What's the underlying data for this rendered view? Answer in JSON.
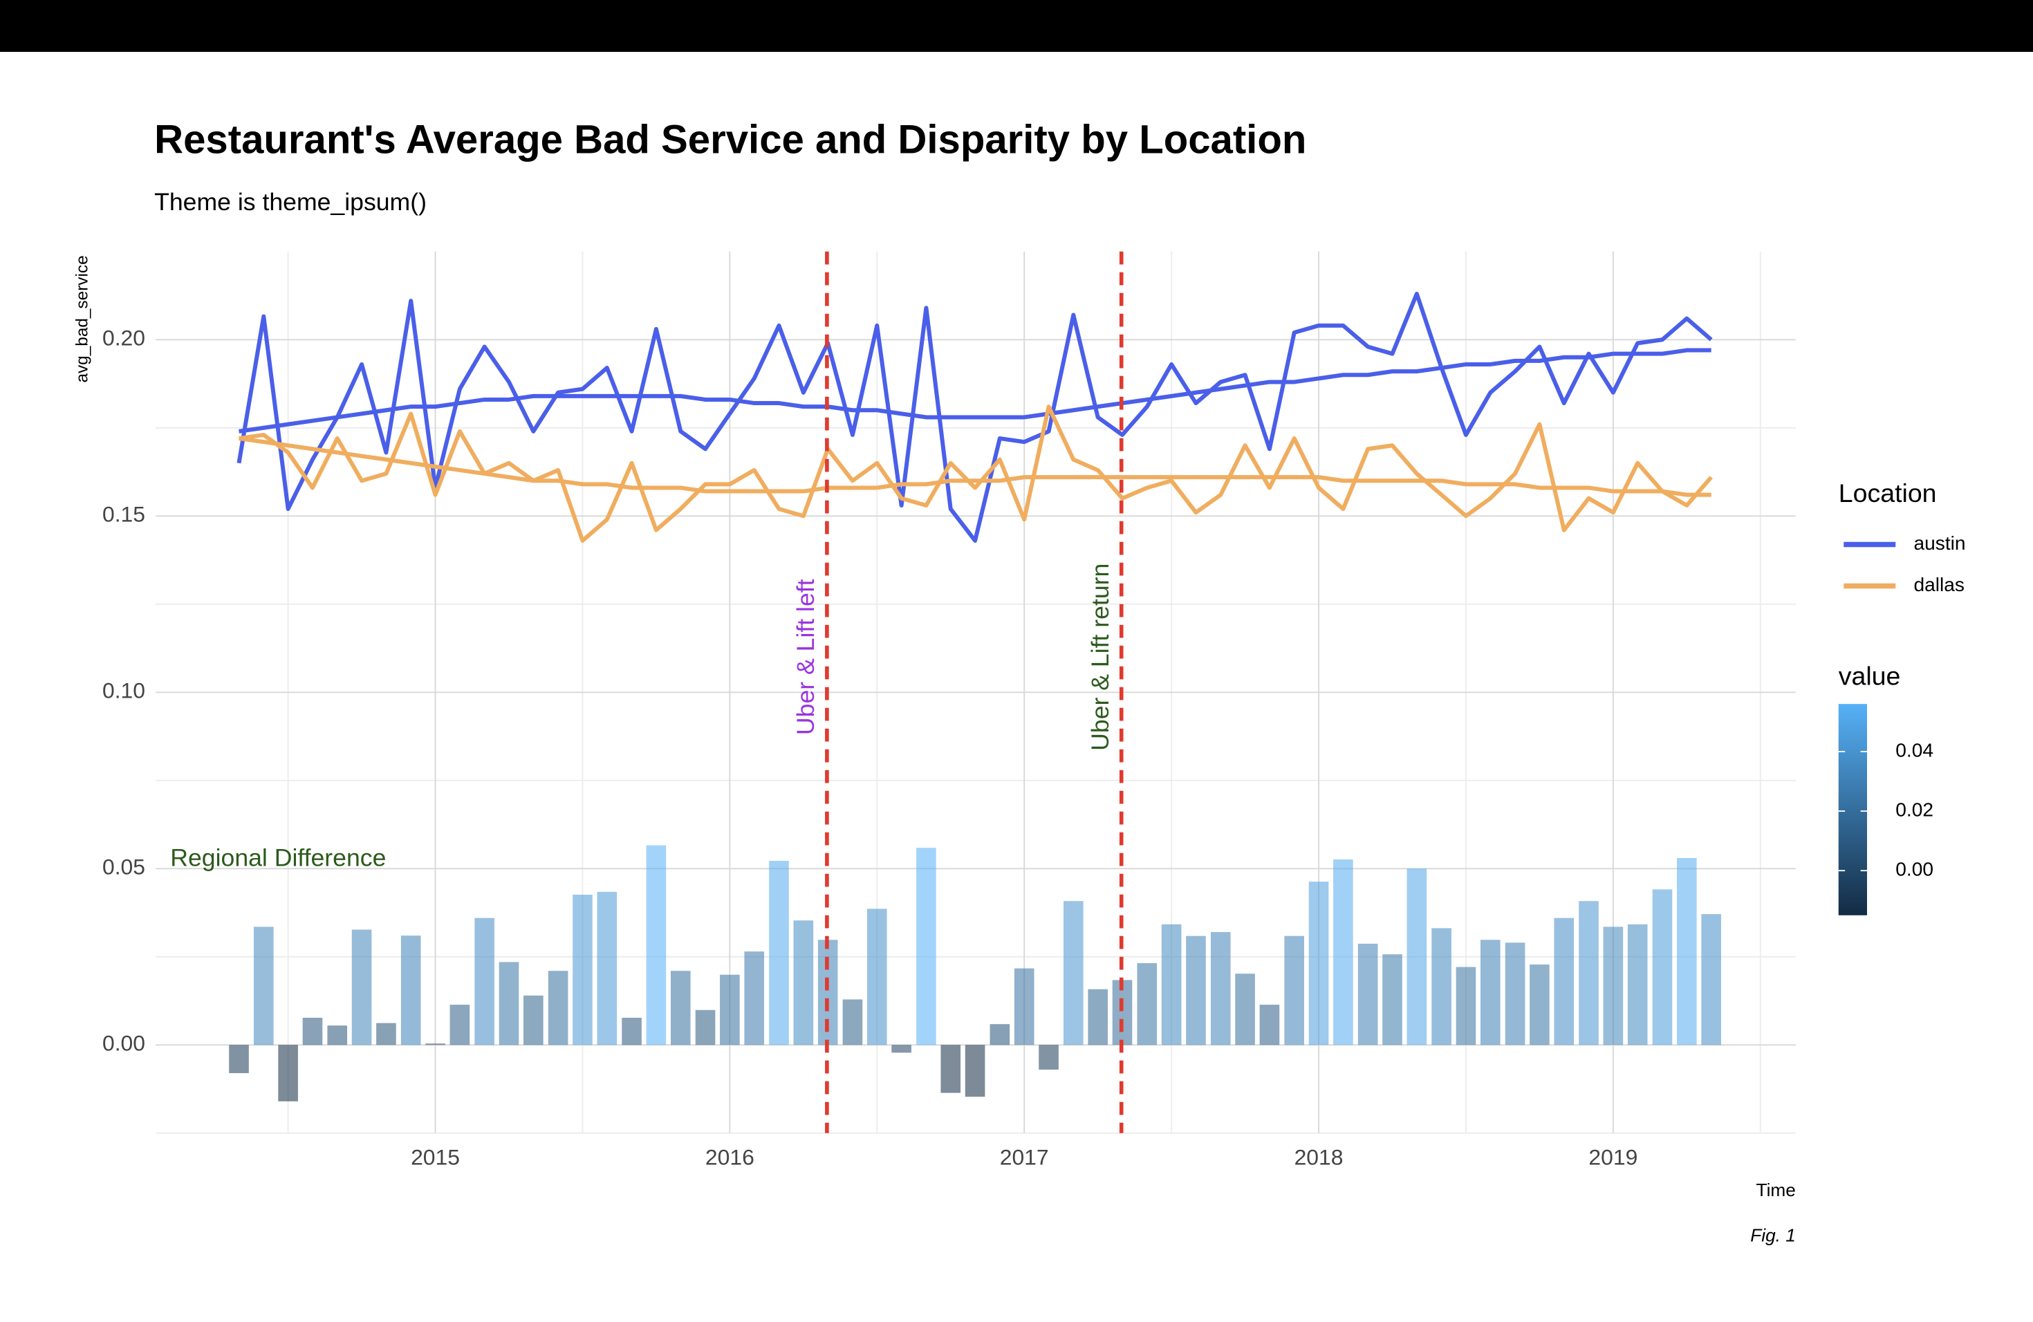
{
  "chart_data": {
    "type": "line",
    "title": "Restaurant's Average Bad Service and Disparity by Location",
    "subtitle": "Theme is theme_ipsum()",
    "y_label": "avg_bad_service",
    "x_label": "Time",
    "caption": "Fig. 1",
    "legend_title": "Location",
    "x": [
      2014.333,
      2014.417,
      2014.5,
      2014.583,
      2014.667,
      2014.75,
      2014.833,
      2014.917,
      2015,
      2015.083,
      2015.167,
      2015.25,
      2015.333,
      2015.417,
      2015.5,
      2015.583,
      2015.667,
      2015.75,
      2015.833,
      2015.917,
      2016,
      2016.083,
      2016.167,
      2016.25,
      2016.333,
      2016.417,
      2016.5,
      2016.583,
      2016.667,
      2016.75,
      2016.833,
      2016.917,
      2017,
      2017.083,
      2017.167,
      2017.25,
      2017.333,
      2017.417,
      2017.5,
      2017.583,
      2017.667,
      2017.75,
      2017.833,
      2017.917,
      2018,
      2018.083,
      2018.167,
      2018.25,
      2018.333,
      2018.417,
      2018.5,
      2018.583,
      2018.667,
      2018.75,
      2018.833,
      2018.917,
      2019,
      2019.083,
      2019.167,
      2019.25,
      2019.333
    ],
    "series": [
      {
        "name": "austin",
        "color": "#4a5fe9",
        "values": [
          0.165,
          0.2066,
          0.152,
          0.166,
          0.178,
          0.193,
          0.168,
          0.211,
          0.158,
          0.186,
          0.198,
          0.188,
          0.174,
          0.185,
          0.186,
          0.192,
          0.174,
          0.203,
          0.174,
          0.169,
          0.179,
          0.189,
          0.204,
          0.185,
          0.199,
          0.173,
          0.204,
          0.153,
          0.209,
          0.152,
          0.143,
          0.172,
          0.171,
          0.174,
          0.207,
          0.178,
          0.173,
          0.181,
          0.193,
          0.182,
          0.188,
          0.19,
          0.169,
          0.202,
          0.204,
          0.204,
          0.198,
          0.196,
          0.213,
          0.192,
          0.173,
          0.185,
          0.191,
          0.198,
          0.182,
          0.196,
          0.185,
          0.199,
          0.2,
          0.206,
          0.2
        ],
        "smooth": [
          0.174,
          0.175,
          0.176,
          0.177,
          0.178,
          0.179,
          0.18,
          0.181,
          0.181,
          0.182,
          0.183,
          0.183,
          0.184,
          0.184,
          0.184,
          0.184,
          0.184,
          0.184,
          0.184,
          0.183,
          0.183,
          0.182,
          0.182,
          0.181,
          0.181,
          0.18,
          0.18,
          0.179,
          0.178,
          0.178,
          0.178,
          0.178,
          0.178,
          0.179,
          0.18,
          0.181,
          0.182,
          0.183,
          0.184,
          0.185,
          0.186,
          0.187,
          0.188,
          0.188,
          0.189,
          0.19,
          0.19,
          0.191,
          0.191,
          0.192,
          0.193,
          0.193,
          0.194,
          0.194,
          0.195,
          0.195,
          0.196,
          0.196,
          0.196,
          0.197,
          0.197
        ]
      },
      {
        "name": "dallas",
        "color": "#f0ad5f",
        "values": [
          0.172,
          0.173,
          0.168,
          0.158,
          0.172,
          0.16,
          0.162,
          0.179,
          0.156,
          0.174,
          0.162,
          0.165,
          0.16,
          0.163,
          0.143,
          0.149,
          0.165,
          0.146,
          0.152,
          0.159,
          0.159,
          0.163,
          0.152,
          0.15,
          0.169,
          0.16,
          0.165,
          0.155,
          0.153,
          0.165,
          0.158,
          0.166,
          0.149,
          0.181,
          0.166,
          0.163,
          0.155,
          0.158,
          0.16,
          0.151,
          0.156,
          0.17,
          0.158,
          0.172,
          0.158,
          0.152,
          0.169,
          0.17,
          0.162,
          0.156,
          0.15,
          0.155,
          0.162,
          0.176,
          0.146,
          0.155,
          0.151,
          0.165,
          0.157,
          0.153,
          0.161
        ],
        "smooth": [
          0.172,
          0.171,
          0.17,
          0.169,
          0.168,
          0.167,
          0.166,
          0.165,
          0.164,
          0.163,
          0.162,
          0.161,
          0.16,
          0.16,
          0.159,
          0.159,
          0.158,
          0.158,
          0.158,
          0.157,
          0.157,
          0.157,
          0.157,
          0.157,
          0.158,
          0.158,
          0.158,
          0.159,
          0.159,
          0.16,
          0.16,
          0.16,
          0.161,
          0.161,
          0.161,
          0.161,
          0.161,
          0.161,
          0.161,
          0.161,
          0.161,
          0.161,
          0.161,
          0.161,
          0.161,
          0.16,
          0.16,
          0.16,
          0.16,
          0.16,
          0.159,
          0.159,
          0.159,
          0.158,
          0.158,
          0.158,
          0.157,
          0.157,
          0.157,
          0.156,
          0.156
        ]
      }
    ],
    "bars": {
      "legend_title": "value",
      "low_color": "#132B43",
      "high_color": "#56B1F7",
      "opacity": 0.55,
      "values": [
        -0.008,
        0.0335,
        -0.016,
        0.0077,
        0.0055,
        0.0327,
        0.0062,
        0.031,
        0.0004,
        0.0114,
        0.036,
        0.0235,
        0.014,
        0.021,
        0.0426,
        0.0434,
        0.0077,
        0.0566,
        0.021,
        0.0099,
        0.0199,
        0.0265,
        0.0522,
        0.0353,
        0.0298,
        0.0129,
        0.0386,
        -0.0022,
        0.0559,
        -0.0136,
        -0.0147,
        0.0059,
        0.0217,
        -0.007,
        0.0408,
        0.0158,
        0.0184,
        0.0232,
        0.0342,
        0.0309,
        0.032,
        0.0202,
        0.0114,
        0.0309,
        0.0463,
        0.0526,
        0.0287,
        0.0257,
        0.05,
        0.0331,
        0.0221,
        0.0298,
        0.029,
        0.0228,
        0.036,
        0.0408,
        0.0335,
        0.0342,
        0.0441,
        0.053,
        0.0371
      ],
      "lim": [
        -0.015,
        0.056
      ],
      "ticks": [
        {
          "value": 0,
          "label": "0.00"
        },
        {
          "value": 0.02,
          "label": "0.02"
        },
        {
          "value": 0.04,
          "label": "0.04"
        }
      ]
    },
    "vlines": [
      {
        "x": 2016.33,
        "color": "#e03a2e",
        "label": "Uber & Lift left",
        "label_color": "#9a33e0",
        "label_y": 0.11
      },
      {
        "x": 2017.33,
        "color": "#e03a2e",
        "label": "Uber & Lift return",
        "label_color": "#2d5a1d",
        "label_y": 0.11
      }
    ],
    "annotations": [
      {
        "text": "Regional Difference",
        "x": 2014.1,
        "y": 0.0526,
        "color": "#2d5a1d"
      }
    ],
    "xlim": [
      2014.05,
      2019.62
    ],
    "ylim": [
      -0.025,
      0.225
    ],
    "xticks": [
      2015,
      2016,
      2017,
      2018,
      2019
    ],
    "xminor": [
      2014.5,
      2015.5,
      2016.5,
      2017.5,
      2018.5,
      2019.5
    ],
    "yticks": [
      {
        "value": 0,
        "label": "0.00"
      },
      {
        "value": 0.05,
        "label": "0.05"
      },
      {
        "value": 0.1,
        "label": "0.10"
      },
      {
        "value": 0.15,
        "label": "0.15"
      },
      {
        "value": 0.2,
        "label": "0.20"
      }
    ],
    "yminor": [
      -0.025,
      0.025,
      0.075,
      0.125,
      0.175
    ],
    "grid": true
  }
}
